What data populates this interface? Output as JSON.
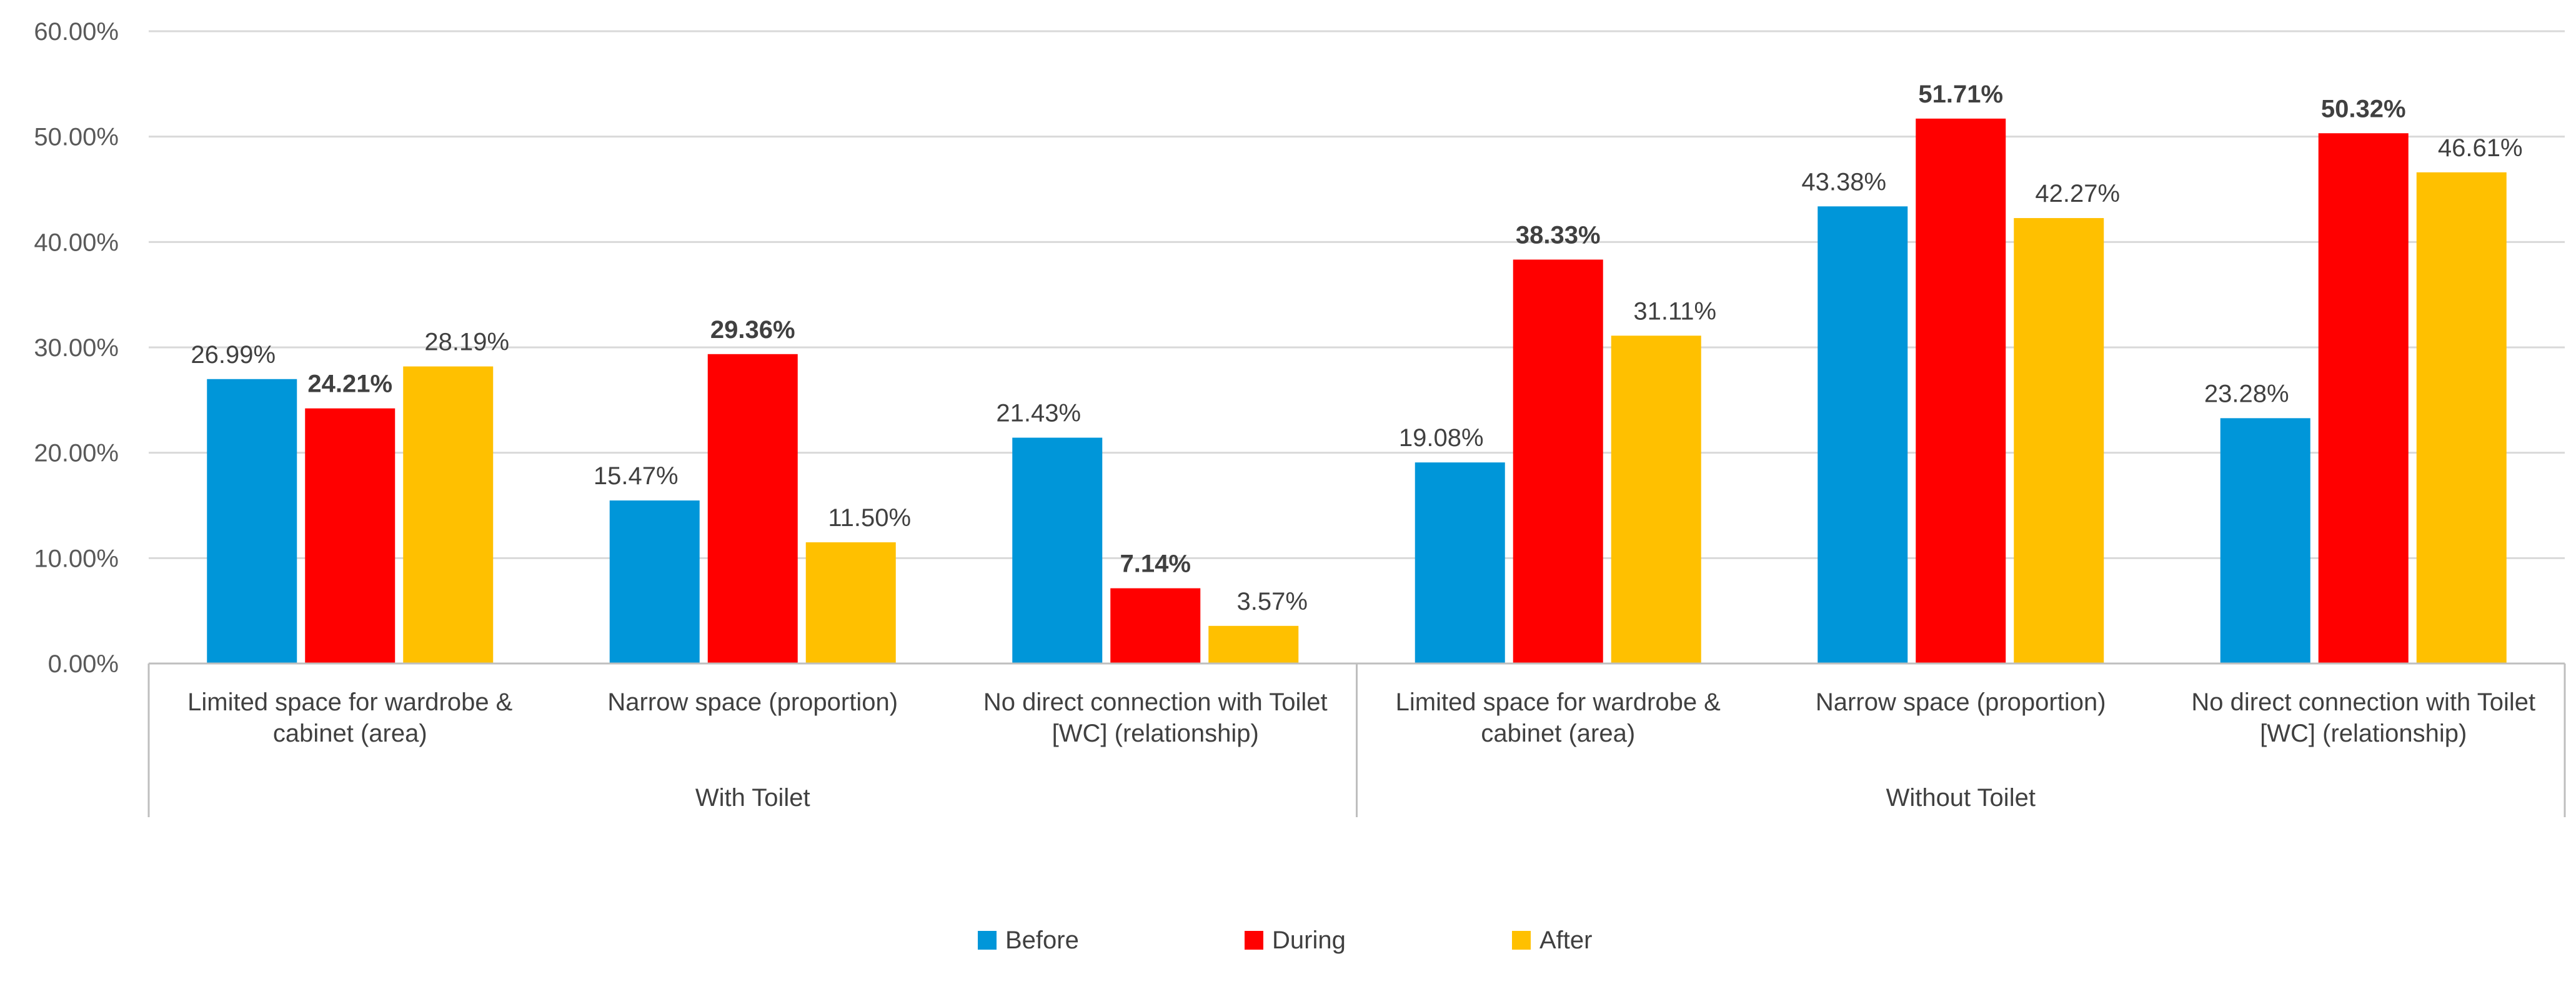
{
  "chart_data": {
    "type": "bar",
    "title": "",
    "xlabel": "",
    "ylabel": "",
    "ylim": [
      0,
      60
    ],
    "y_ticks": [
      "0.00%",
      "10.00%",
      "20.00%",
      "30.00%",
      "40.00%",
      "50.00%",
      "60.00%"
    ],
    "groups": [
      {
        "label": "With Toilet",
        "categories": [
          [
            "Limited space for wardrobe &",
            "cabinet (area)"
          ],
          [
            "Narrow space (proportion)"
          ],
          [
            "No direct connection with Toilet",
            "[WC] (relationship)"
          ]
        ]
      },
      {
        "label": "Without Toilet",
        "categories": [
          [
            "Limited space for wardrobe &",
            "cabinet (area)"
          ],
          [
            "Narrow space (proportion)"
          ],
          [
            "No direct connection with Toilet",
            "[WC] (relationship)"
          ]
        ]
      }
    ],
    "series": [
      {
        "name": "Before",
        "color": "#0096D9",
        "values": [
          26.99,
          15.47,
          21.43,
          19.08,
          43.38,
          23.28
        ],
        "labels": [
          "26.99%",
          "15.47%",
          "21.43%",
          "19.08%",
          "43.38%",
          "23.28%"
        ],
        "bold": false
      },
      {
        "name": "During",
        "color": "#FF0000",
        "values": [
          24.21,
          29.36,
          7.14,
          38.33,
          51.71,
          50.32
        ],
        "labels": [
          "24.21%",
          "29.36%",
          "7.14%",
          "38.33%",
          "51.71%",
          "50.32%"
        ],
        "bold": true
      },
      {
        "name": "After",
        "color": "#FFC000",
        "values": [
          28.19,
          11.5,
          3.57,
          31.11,
          42.27,
          46.61
        ],
        "labels": [
          "28.19%",
          "11.50%",
          "3.57%",
          "31.11%",
          "42.27%",
          "46.61%"
        ],
        "bold": false
      }
    ],
    "legend": {
      "position": "bottom",
      "items": [
        "Before",
        "During",
        "After"
      ]
    },
    "grid": true
  }
}
